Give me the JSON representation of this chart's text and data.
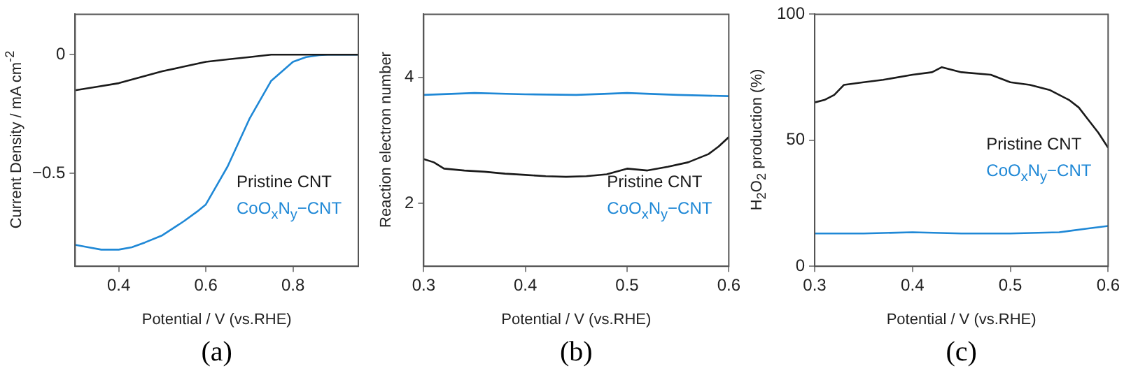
{
  "chart_data": [
    {
      "type": "line",
      "xlabel": "Potential / V (vs.RHE)",
      "ylabel": "Current Density / mA cm$^{-2}$",
      "xlim": [
        0.3,
        0.95
      ],
      "xticks": [
        0.4,
        0.6,
        0.8
      ],
      "ylim": [
        -0.89,
        0.17
      ],
      "yticks": [
        {
          "value": -0.5,
          "label": "−0.5"
        },
        0
      ],
      "grid": false,
      "legend": "bottom right",
      "marker": "none",
      "annotations": [
        "(a)"
      ],
      "series": [
        {
          "name": "Pristine CNT",
          "color": "#1a1a1a",
          "x": [
            0.3,
            0.35,
            0.4,
            0.45,
            0.5,
            0.55,
            0.6,
            0.65,
            0.7,
            0.75,
            0.8,
            0.95
          ],
          "values": [
            -0.15,
            -0.135,
            -0.12,
            -0.095,
            -0.07,
            -0.05,
            -0.03,
            -0.02,
            -0.01,
            0,
            0,
            0
          ]
        },
        {
          "name": "CoO$_{x}$N$_{y}$−CNT",
          "color": "#1f88d6",
          "x": [
            0.3,
            0.33,
            0.36,
            0.4,
            0.43,
            0.46,
            0.5,
            0.55,
            0.58,
            0.6,
            0.65,
            0.7,
            0.75,
            0.8,
            0.83,
            0.86,
            0.88,
            0.95
          ],
          "values": [
            -0.8,
            -0.81,
            -0.82,
            -0.82,
            -0.81,
            -0.79,
            -0.76,
            -0.7,
            -0.66,
            -0.63,
            -0.47,
            -0.27,
            -0.11,
            -0.03,
            -0.01,
            -0.002,
            0,
            0
          ]
        }
      ]
    },
    {
      "type": "line",
      "xlabel": "Potential / V (vs.RHE)",
      "ylabel": "Reaction electron number",
      "xlim": [
        0.3,
        0.6
      ],
      "xticks": [
        0.3,
        0.4,
        0.5,
        0.6
      ],
      "ylim": [
        1,
        5
      ],
      "yticks": [
        2,
        4
      ],
      "grid": false,
      "legend": "bottom right",
      "marker": "none",
      "annotations": [
        "(b)"
      ],
      "series": [
        {
          "name": "Pristine CNT",
          "color": "#1a1a1a",
          "x": [
            0.3,
            0.31,
            0.32,
            0.34,
            0.36,
            0.38,
            0.4,
            0.42,
            0.44,
            0.46,
            0.48,
            0.5,
            0.52,
            0.54,
            0.56,
            0.58,
            0.59,
            0.6
          ],
          "values": [
            2.7,
            2.65,
            2.55,
            2.52,
            2.5,
            2.47,
            2.45,
            2.43,
            2.42,
            2.43,
            2.46,
            2.55,
            2.52,
            2.58,
            2.65,
            2.78,
            2.9,
            3.05
          ]
        },
        {
          "name": "CoO$_{x}$N$_{y}$−CNT",
          "color": "#1f88d6",
          "x": [
            0.3,
            0.35,
            0.4,
            0.45,
            0.5,
            0.55,
            0.6
          ],
          "values": [
            3.72,
            3.75,
            3.73,
            3.72,
            3.75,
            3.72,
            3.7
          ]
        }
      ]
    },
    {
      "type": "line",
      "xlabel": "Potential / V (vs.RHE)",
      "ylabel": "H$_{2}$O$_{2}$ production (%)",
      "xlim": [
        0.3,
        0.6
      ],
      "xticks": [
        0.3,
        0.4,
        0.5,
        0.6
      ],
      "ylim": [
        0,
        100
      ],
      "yticks": [
        0,
        50,
        100
      ],
      "grid": false,
      "legend": "right",
      "marker": "none",
      "annotations": [
        "(c)"
      ],
      "series": [
        {
          "name": "Pristine CNT",
          "color": "#1a1a1a",
          "x": [
            0.3,
            0.31,
            0.32,
            0.33,
            0.35,
            0.37,
            0.4,
            0.42,
            0.43,
            0.45,
            0.48,
            0.5,
            0.52,
            0.54,
            0.55,
            0.56,
            0.57,
            0.58,
            0.59,
            0.6
          ],
          "values": [
            65,
            66,
            68,
            72,
            73,
            74,
            76,
            77,
            79,
            77,
            76,
            73,
            72,
            70,
            68,
            66,
            63,
            58,
            53,
            47
          ]
        },
        {
          "name": "CoO$_{x}$N$_{y}$−CNT",
          "color": "#1f88d6",
          "x": [
            0.3,
            0.35,
            0.4,
            0.45,
            0.5,
            0.55,
            0.58,
            0.6
          ],
          "values": [
            13,
            13,
            13.5,
            13,
            13,
            13.5,
            15,
            16
          ]
        }
      ]
    }
  ]
}
